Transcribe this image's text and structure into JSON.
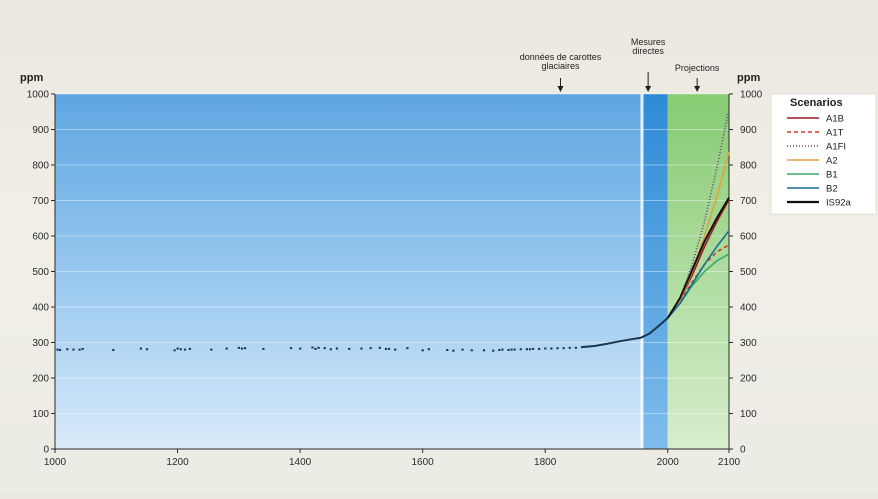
{
  "chart_data": {
    "type": "line",
    "y_unit_left": "ppm",
    "y_unit_right": "ppm",
    "xlim": [
      1000,
      2100
    ],
    "ylim": [
      0,
      1000
    ],
    "x_ticks": [
      "1000",
      "1200",
      "1400",
      "1600",
      "1800",
      "2000",
      "2100"
    ],
    "y_ticks": [
      "0",
      "100",
      "200",
      "300",
      "400",
      "500",
      "600",
      "700",
      "800",
      "900",
      "1000"
    ],
    "grid": true,
    "regions": [
      {
        "name": "ice_core",
        "from": 1000,
        "to": 1958,
        "color": "#6aaee3"
      },
      {
        "name": "direct",
        "from": 1958,
        "to": 2000,
        "color": "#2f8fd8"
      },
      {
        "name": "projection",
        "from": 2000,
        "to": 2100,
        "color": "#8ccf7a"
      }
    ],
    "annotations": [
      {
        "lines": [
          "données de carottes",
          "glaciaires"
        ],
        "x": 1825
      },
      {
        "lines": [
          "Mesures",
          "directes"
        ],
        "x": 1968
      },
      {
        "lines": [
          "Projections"
        ],
        "x": 2048
      }
    ],
    "ice_core_points": {
      "x": [
        1004,
        1008,
        1020,
        1030,
        1040,
        1045,
        1095,
        1140,
        1150,
        1195,
        1200,
        1205,
        1212,
        1220,
        1255,
        1280,
        1300,
        1305,
        1310,
        1340,
        1385,
        1400,
        1420,
        1425,
        1430,
        1440,
        1450,
        1460,
        1480,
        1500,
        1515,
        1530,
        1540,
        1545,
        1555,
        1575,
        1600,
        1610,
        1640,
        1650,
        1665,
        1680,
        1700,
        1715,
        1725,
        1730,
        1740,
        1745,
        1750,
        1760,
        1770,
        1775,
        1780,
        1790,
        1800,
        1810,
        1820,
        1830,
        1840,
        1850,
        1860
      ],
      "y": [
        280,
        279,
        281,
        280,
        280,
        282,
        279,
        283,
        281,
        278,
        283,
        281,
        280,
        282,
        280,
        283,
        285,
        283,
        284,
        282,
        284,
        283,
        286,
        282,
        285,
        284,
        281,
        283,
        282,
        283,
        284,
        285,
        282,
        282,
        280,
        284,
        278,
        281,
        279,
        277,
        280,
        278,
        278,
        277,
        279,
        280,
        279,
        280,
        280,
        281,
        281,
        281,
        282,
        282,
        283,
        283,
        284,
        284,
        285,
        285,
        287
      ]
    },
    "measured_curve": {
      "x": [
        1860,
        1880,
        1900,
        1920,
        1940,
        1955,
        1958,
        1970,
        1980,
        1990,
        2000
      ],
      "y": [
        287,
        290,
        296,
        303,
        309,
        313,
        315,
        325,
        339,
        354,
        369
      ]
    },
    "legend": {
      "title": "Scenarios",
      "placement": "right"
    },
    "series": [
      {
        "name": "A1B",
        "color": "#9b1b1b",
        "dash": "",
        "x": [
          2000,
          2020,
          2040,
          2060,
          2080,
          2100
        ],
        "y": [
          369,
          420,
          490,
          570,
          640,
          703
        ]
      },
      {
        "name": "A1T",
        "color": "#d23a2a",
        "dash": "4,3",
        "x": [
          2000,
          2020,
          2040,
          2060,
          2080,
          2100
        ],
        "y": [
          369,
          415,
          470,
          520,
          555,
          575
        ]
      },
      {
        "name": "A1FI",
        "color": "#7a3a78",
        "dash": "1,2",
        "x": [
          2000,
          2020,
          2040,
          2060,
          2080,
          2100
        ],
        "y": [
          369,
          425,
          520,
          640,
          790,
          958
        ]
      },
      {
        "name": "A2",
        "color": "#e6a040",
        "dash": "",
        "x": [
          2000,
          2020,
          2040,
          2060,
          2080,
          2100
        ],
        "y": [
          369,
          420,
          500,
          600,
          710,
          836
        ]
      },
      {
        "name": "B1",
        "color": "#3aa86a",
        "dash": "",
        "x": [
          2000,
          2020,
          2040,
          2060,
          2080,
          2100
        ],
        "y": [
          369,
          410,
          460,
          500,
          530,
          549
        ]
      },
      {
        "name": "B2",
        "color": "#1a6e8e",
        "dash": "",
        "x": [
          2000,
          2020,
          2040,
          2060,
          2080,
          2100
        ],
        "y": [
          369,
          410,
          465,
          520,
          570,
          615
        ]
      },
      {
        "name": "IS92a",
        "color": "#111111",
        "dash": "",
        "x": [
          2000,
          2020,
          2040,
          2060,
          2080,
          2100
        ],
        "y": [
          369,
          425,
          505,
          585,
          650,
          708
        ]
      }
    ]
  }
}
